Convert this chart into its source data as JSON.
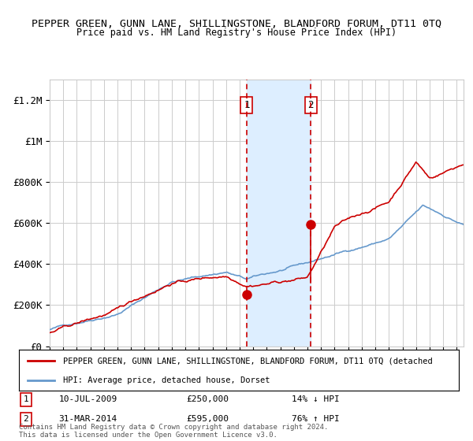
{
  "title": "PEPPER GREEN, GUNN LANE, SHILLINGSTONE, BLANDFORD FORUM, DT11 0TQ",
  "subtitle": "Price paid vs. HM Land Registry's House Price Index (HPI)",
  "ylabel_ticks": [
    "£0",
    "£200K",
    "£400K",
    "£600K",
    "£800K",
    "£1M",
    "£1.2M"
  ],
  "ytick_values": [
    0,
    200000,
    400000,
    600000,
    800000,
    1000000,
    1200000
  ],
  "ylim": [
    0,
    1300000
  ],
  "x_start_year": 1995,
  "x_end_year": 2025,
  "sale1_date": 2009.52,
  "sale1_price": 250000,
  "sale2_date": 2014.25,
  "sale2_price": 595000,
  "sale1_text": "10-JUL-2009",
  "sale1_price_text": "£250,000",
  "sale1_hpi_text": "14% ↓ HPI",
  "sale2_text": "31-MAR-2014",
  "sale2_price_text": "£595,000",
  "sale2_hpi_text": "76% ↑ HPI",
  "legend_line1": "PEPPER GREEN, GUNN LANE, SHILLINGSTONE, BLANDFORD FORUM, DT11 0TQ (detached",
  "legend_line2": "HPI: Average price, detached house, Dorset",
  "footer": "Contains HM Land Registry data © Crown copyright and database right 2024.\nThis data is licensed under the Open Government Licence v3.0.",
  "red_color": "#cc0000",
  "blue_color": "#6699cc",
  "shade_color": "#ddeeff",
  "background_color": "#ffffff",
  "grid_color": "#cccccc"
}
